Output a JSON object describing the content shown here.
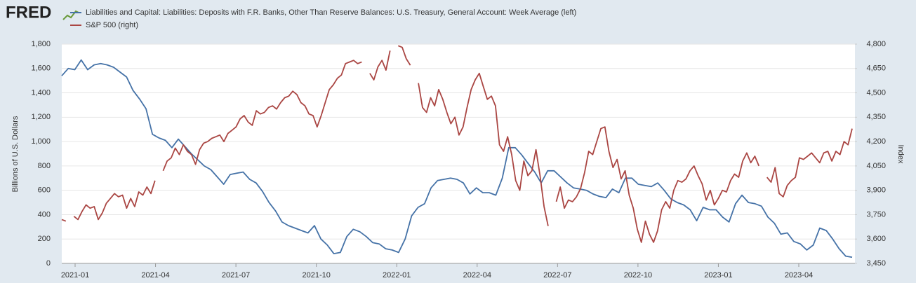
{
  "logo": "FRED",
  "chart_data": {
    "type": "line",
    "y_label": "Billions of U.S. Dollars",
    "y2_label": "Index",
    "grid": true,
    "legend": "top-left",
    "xticks": [
      "2021-01",
      "2021-04",
      "2021-07",
      "2021-10",
      "2022-01",
      "2022-04",
      "2022-07",
      "2022-10",
      "2023-01",
      "2023-04"
    ],
    "ylim": [
      0,
      1800
    ],
    "yticks": [
      0,
      200,
      400,
      600,
      800,
      {
        "value": 1000,
        "label": "1,000"
      },
      {
        "value": 1200,
        "label": "1,200"
      },
      {
        "value": 1400,
        "label": "1,400"
      },
      {
        "value": 1600,
        "label": "1,600"
      },
      {
        "value": 1800,
        "label": "1,800"
      }
    ],
    "y2lim": [
      3450,
      4800
    ],
    "y2ticks": [
      {
        "value": 3450,
        "label": "3,450"
      },
      {
        "value": 3600,
        "label": "3,600"
      },
      {
        "value": 3750,
        "label": "3,750"
      },
      {
        "value": 3900,
        "label": "3,900"
      },
      {
        "value": 4050,
        "label": "4,050"
      },
      {
        "value": 4200,
        "label": "4,200"
      },
      {
        "value": 4350,
        "label": "4,350"
      },
      {
        "value": 4500,
        "label": "4,500"
      },
      {
        "value": 4650,
        "label": "4,650"
      },
      {
        "value": 4800,
        "label": "4,800"
      }
    ],
    "series": [
      {
        "name": "Liabilities and Capital: Liabilities: Deposits with F.R. Banks, Other Than Reserve Balances: U.S. Treasury, General Account: Week Average (left)",
        "color": "#4572a7",
        "axis": "y",
        "values": [
          1540,
          1600,
          1590,
          1670,
          1590,
          1630,
          1640,
          1630,
          1610,
          1570,
          1530,
          1420,
          1350,
          1270,
          1060,
          1030,
          1010,
          950,
          1020,
          960,
          900,
          850,
          800,
          770,
          710,
          650,
          730,
          740,
          750,
          690,
          660,
          590,
          500,
          430,
          340,
          310,
          290,
          270,
          250,
          310,
          200,
          150,
          80,
          90,
          220,
          280,
          260,
          220,
          170,
          160,
          120,
          110,
          90,
          200,
          390,
          460,
          490,
          620,
          680,
          690,
          700,
          690,
          660,
          570,
          620,
          580,
          580,
          560,
          700,
          950,
          950,
          890,
          820,
          750,
          660,
          760,
          760,
          710,
          660,
          620,
          610,
          600,
          570,
          550,
          540,
          610,
          580,
          700,
          700,
          650,
          640,
          630,
          660,
          600,
          530,
          500,
          480,
          440,
          350,
          460,
          440,
          440,
          380,
          340,
          490,
          560,
          500,
          490,
          470,
          380,
          330,
          240,
          250,
          180,
          160,
          110,
          150,
          290,
          270,
          200,
          120,
          60,
          50
        ]
      },
      {
        "name": "S&P 500 (right)",
        "color": "#aa4643",
        "axis": "y2",
        "values": [
          3720,
          3710,
          null,
          3740,
          3720,
          3770,
          3810,
          3790,
          3800,
          3720,
          3760,
          3820,
          3850,
          3880,
          3860,
          3870,
          3790,
          3850,
          3800,
          3890,
          3870,
          3920,
          3880,
          3960,
          null,
          4020,
          4080,
          4100,
          4160,
          4120,
          4180,
          4140,
          4120,
          4060,
          4150,
          4190,
          4200,
          4220,
          4230,
          4240,
          4200,
          4250,
          4270,
          4290,
          4340,
          4360,
          4320,
          4300,
          4390,
          4370,
          4380,
          4410,
          4420,
          4400,
          4440,
          4470,
          4480,
          4510,
          4490,
          4440,
          4420,
          4370,
          4360,
          4290,
          4360,
          4440,
          4520,
          4550,
          4590,
          4610,
          4680,
          4690,
          4700,
          4680,
          4690,
          null,
          4620,
          4580,
          4660,
          4700,
          4640,
          4760,
          null,
          4790,
          4780,
          4710,
          4670,
          null,
          4560,
          4410,
          4380,
          4470,
          4420,
          4520,
          4460,
          4380,
          4310,
          4350,
          4240,
          4290,
          4410,
          4520,
          4580,
          4620,
          4540,
          4460,
          4480,
          4420,
          4180,
          4140,
          4230,
          4120,
          3960,
          3900,
          4080,
          3990,
          4020,
          4150,
          3990,
          3800,
          3680,
          null,
          3830,
          3920,
          3790,
          3840,
          3830,
          3860,
          3910,
          4010,
          4140,
          4120,
          4200,
          4280,
          4290,
          4140,
          4040,
          4090,
          3970,
          4020,
          3870,
          3790,
          3660,
          3580,
          3710,
          3630,
          3580,
          3650,
          3780,
          3830,
          3790,
          3900,
          3960,
          3950,
          3970,
          4020,
          4050,
          3990,
          3940,
          3840,
          3900,
          3810,
          3850,
          3900,
          3890,
          3960,
          4000,
          3980,
          4080,
          4130,
          4070,
          4110,
          4050,
          null,
          3980,
          3950,
          4040,
          3880,
          3860,
          3930,
          3960,
          3980,
          4100,
          4090,
          4110,
          4130,
          4100,
          4070,
          4130,
          4140,
          4080,
          4140,
          4120,
          4200,
          4180,
          4280
        ]
      }
    ]
  }
}
